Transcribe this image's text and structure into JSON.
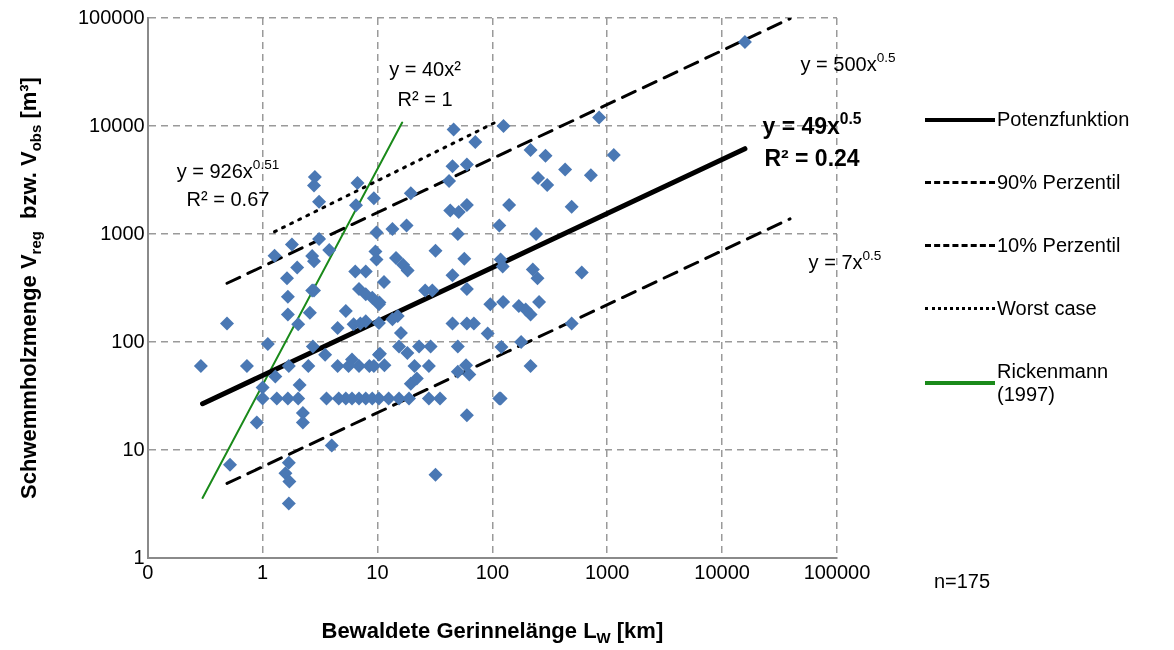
{
  "chart_data": {
    "type": "scatter",
    "xlabel": "Bewaldete Gerinnelänge L$_{W}$ [km]",
    "ylabel": "Schwemmholzmenge V$_{reg}$  bzw. V$_{obs}$ [m³]",
    "xlim": [
      0.1,
      100000
    ],
    "ylim": [
      1,
      100000
    ],
    "xticks": [
      {
        "value": 0.1,
        "label": "0"
      },
      1,
      10,
      100,
      1000,
      10000,
      100000
    ],
    "yticks": [
      1,
      10,
      100,
      1000,
      10000,
      100000
    ],
    "log": "xy",
    "grid": true,
    "legend": "right",
    "annotations": [
      "y = 926x$^{0.51}$",
      "R² = 0.67",
      "y = 40x²",
      "R² = 1",
      "y = 500x$^{0.5}$",
      "y = 49x$^{0.5}$",
      "R² = 0.24",
      "y = 7x$^{0.5}$",
      "n=175"
    ],
    "series": [
      {
        "type": "scatter",
        "color": "#4a78b4",
        "marker": "diamond",
        "x": [
          0.29,
          0.49,
          0.73,
          1.66,
          1.66,
          2.58,
          2.04,
          2.7,
          1.11,
          1.69,
          1.29,
          1.0,
          1.0,
          1.33,
          1.66,
          2.04,
          2.1,
          2.24,
          2.24,
          0.89,
          2.5,
          2.74,
          3.5,
          3.6,
          4.5,
          4.6,
          5.3,
          6.0,
          6.9,
          7.9,
          9.0,
          5.6,
          6.0,
          6.9,
          8.5,
          9.3,
          10.5,
          4.0,
          0.52,
          1.69,
          1.58,
          1.71,
          1.69,
          4.5,
          5.3,
          6.2,
          7.1,
          7.9,
          6.9,
          7.9,
          9.0,
          10.4,
          2.85,
          2.8,
          3.1,
          6.7,
          6.5,
          9.3,
          3.1,
          1.8,
          1.27,
          2.7,
          3.8,
          2.8,
          2.0,
          1.63,
          6.4,
          7.9,
          9.8,
          9.6,
          9.8,
          11.4,
          2.8,
          46,
          71,
          125,
          215,
          290,
          430,
          720,
          850,
          1140,
          45,
          60,
          42,
          250,
          300,
          140,
          490,
          19.5,
          43,
          51,
          60,
          13.5,
          17.9,
          115,
          240,
          50,
          32,
          57,
          14.5,
          16.7,
          18.3,
          45,
          118,
          123,
          225,
          247,
          600,
          26,
          30,
          60,
          96,
          124,
          170,
          195,
          215,
          255,
          10.3,
          10.3,
          13.5,
          15,
          16,
          45,
          60,
          69,
          91,
          490,
          10.3,
          11.5,
          15.4,
          18.2,
          23,
          29,
          50,
          21,
          28,
          50,
          59,
          63,
          19.5,
          22,
          120,
          178,
          215,
          10.3,
          12.5,
          15.4,
          18.8,
          28,
          35,
          115,
          118,
          60,
          32,
          15800
        ],
        "values": [
          60,
          148,
          60,
          263,
          180,
          187,
          146,
          300,
          96,
          60,
          48,
          38,
          30,
          30,
          30,
          30,
          40,
          22,
          18,
          18,
          60,
          91,
          76,
          30,
          60,
          30,
          30,
          30,
          30,
          30,
          30,
          60,
          69,
          60,
          60,
          60,
          78,
          11,
          7.3,
          7.6,
          6.1,
          5.1,
          3.2,
          135,
          194,
          146,
          148,
          156,
          310,
          277,
          257,
          232,
          3370,
          2810,
          1990,
          2960,
          1850,
          2140,
          900,
          800,
          630,
          625,
          710,
          560,
          490,
          390,
          450,
          450,
          1030,
          690,
          580,
          360,
          300,
          9300,
          7100,
          10000,
          6000,
          5300,
          3960,
          3500,
          12000,
          5400,
          4250,
          4400,
          3100,
          3300,
          2850,
          1860,
          1790,
          2380,
          1650,
          1600,
          1860,
          1110,
          1200,
          1200,
          1000,
          1000,
          700,
          590,
          600,
          520,
          460,
          415,
          580,
          500,
          470,
          390,
          440,
          300,
          300,
          310,
          224,
          235,
          215,
          200,
          180,
          235,
          224,
          150,
          162,
          174,
          121,
          148,
          148,
          148,
          120,
          148,
          76,
          61,
          91,
          79,
          91,
          91,
          91,
          60,
          60,
          53,
          61,
          50,
          41,
          46,
          90,
          100,
          60,
          30,
          30,
          30,
          30,
          30,
          30,
          30,
          30,
          21,
          5.9,
          60000
        ]
      },
      {
        "type": "line",
        "name": "Potenzfunktion",
        "color": "#000000",
        "line_style": "solid",
        "marker": "none",
        "x": [
          0.3,
          15800
        ],
        "values": [
          26.8,
          6160
        ]
      },
      {
        "type": "line",
        "name": "90% Perzentil",
        "color": "#000000",
        "line_style": "dashed",
        "marker": "none",
        "x": [
          0.49,
          39000
        ],
        "values": [
          350,
          98700
        ]
      },
      {
        "type": "line",
        "name": "10% Perzentil",
        "color": "#000000",
        "line_style": "dashed",
        "marker": "none",
        "x": [
          0.49,
          39000
        ],
        "values": [
          4.9,
          1382
        ]
      },
      {
        "type": "line",
        "name": "Worst case",
        "color": "#000000",
        "line_style": "dotted",
        "marker": "none",
        "x": [
          1.27,
          108
        ],
        "values": [
          1050,
          10900
        ]
      },
      {
        "type": "line",
        "name": "Rickenmann (1997)",
        "color": "#1a8a1a",
        "line_style": "solid",
        "marker": "none",
        "x": [
          0.3,
          16.4
        ],
        "values": [
          3.6,
          10760
        ]
      }
    ]
  }
}
